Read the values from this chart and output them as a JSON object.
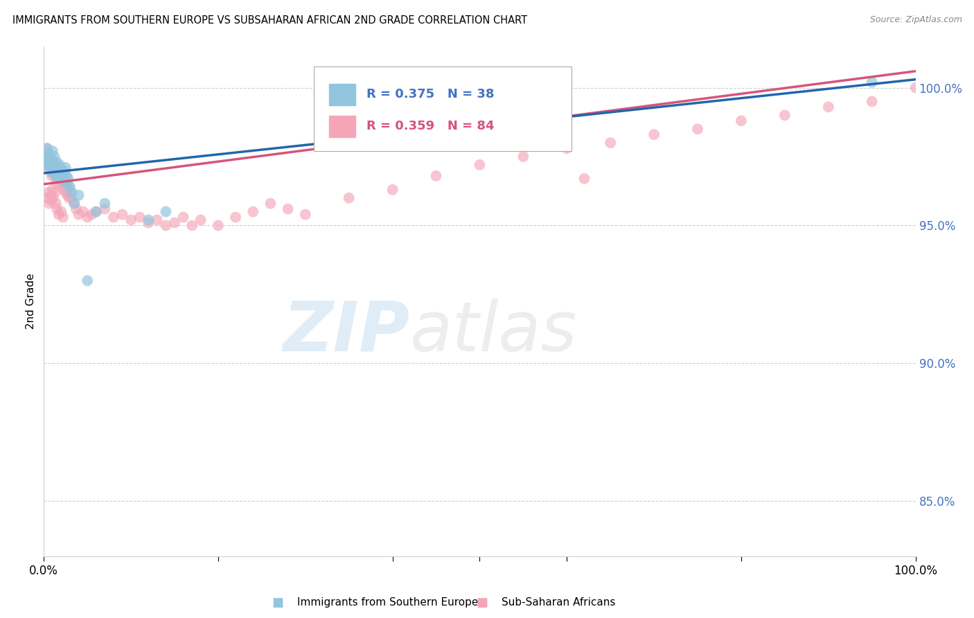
{
  "title": "IMMIGRANTS FROM SOUTHERN EUROPE VS SUBSAHARAN AFRICAN 2ND GRADE CORRELATION CHART",
  "source": "Source: ZipAtlas.com",
  "ylabel": "2nd Grade",
  "right_yticks": [
    100.0,
    95.0,
    90.0,
    85.0
  ],
  "xlim": [
    0.0,
    100.0
  ],
  "ylim": [
    83.0,
    101.5
  ],
  "legend1_label": "Immigrants from Southern Europe",
  "legend2_label": "Sub-Saharan Africans",
  "R1": 0.375,
  "N1": 38,
  "R2": 0.359,
  "N2": 84,
  "color_blue": "#92c5de",
  "color_pink": "#f4a6b8",
  "line_blue": "#2166ac",
  "line_pink": "#d6547a",
  "blue_line_x0": 0.0,
  "blue_line_y0": 96.9,
  "blue_line_x1": 100.0,
  "blue_line_y1": 100.3,
  "pink_line_x0": 0.0,
  "pink_line_y0": 96.5,
  "pink_line_x1": 100.0,
  "pink_line_y1": 100.6,
  "blue_scatter_x": [
    0.2,
    0.3,
    0.4,
    0.5,
    0.6,
    0.7,
    0.8,
    0.9,
    1.0,
    1.0,
    1.1,
    1.2,
    1.3,
    1.4,
    1.5,
    1.6,
    1.7,
    1.8,
    1.9,
    2.0,
    2.1,
    2.2,
    2.3,
    2.4,
    2.5,
    2.6,
    2.7,
    2.8,
    3.0,
    3.2,
    3.5,
    4.0,
    5.0,
    6.0,
    7.0,
    12.0,
    14.0,
    95.0
  ],
  "blue_scatter_y": [
    97.2,
    97.5,
    97.8,
    97.3,
    97.6,
    97.1,
    97.4,
    97.0,
    97.7,
    96.9,
    97.2,
    97.5,
    97.1,
    96.8,
    97.3,
    97.0,
    96.7,
    97.2,
    96.9,
    96.8,
    96.7,
    97.0,
    96.9,
    96.6,
    97.1,
    96.8,
    96.5,
    96.7,
    96.4,
    96.2,
    95.8,
    96.1,
    93.0,
    95.5,
    95.8,
    95.2,
    95.5,
    100.2
  ],
  "pink_scatter_x": [
    0.2,
    0.3,
    0.4,
    0.5,
    0.6,
    0.7,
    0.8,
    0.9,
    1.0,
    1.1,
    1.2,
    1.3,
    1.4,
    1.5,
    1.6,
    1.7,
    1.8,
    1.9,
    2.0,
    2.1,
    2.2,
    2.3,
    2.4,
    2.5,
    2.6,
    2.7,
    2.8,
    2.9,
    3.0,
    3.2,
    3.5,
    3.7,
    4.0,
    4.5,
    5.0,
    5.5,
    6.0,
    7.0,
    8.0,
    9.0,
    10.0,
    11.0,
    12.0,
    13.0,
    14.0,
    15.0,
    16.0,
    17.0,
    18.0,
    20.0,
    22.0,
    24.0,
    26.0,
    28.0,
    30.0,
    35.0,
    40.0,
    45.0,
    50.0,
    55.0,
    60.0,
    65.0,
    70.0,
    75.0,
    80.0,
    85.0,
    90.0,
    95.0,
    100.0,
    0.4,
    0.5,
    0.6,
    0.8,
    0.9,
    1.0,
    1.1,
    1.3,
    1.4,
    1.5,
    1.7,
    1.8,
    2.0,
    2.2,
    62.0
  ],
  "pink_scatter_y": [
    97.5,
    97.8,
    97.2,
    97.6,
    97.3,
    97.0,
    97.4,
    96.8,
    97.1,
    97.3,
    96.9,
    97.2,
    96.7,
    97.0,
    96.5,
    96.8,
    97.1,
    96.6,
    96.9,
    96.4,
    96.7,
    96.3,
    96.6,
    96.2,
    96.5,
    96.1,
    96.4,
    96.0,
    96.2,
    96.0,
    95.8,
    95.6,
    95.4,
    95.5,
    95.3,
    95.4,
    95.5,
    95.6,
    95.3,
    95.4,
    95.2,
    95.3,
    95.1,
    95.2,
    95.0,
    95.1,
    95.3,
    95.0,
    95.2,
    95.0,
    95.3,
    95.5,
    95.8,
    95.6,
    95.4,
    96.0,
    96.3,
    96.8,
    97.2,
    97.5,
    97.8,
    98.0,
    98.3,
    98.5,
    98.8,
    99.0,
    99.3,
    99.5,
    100.0,
    96.0,
    96.2,
    95.8,
    96.1,
    95.9,
    96.3,
    96.0,
    96.2,
    95.8,
    95.6,
    95.4,
    96.8,
    95.5,
    95.3,
    96.7
  ],
  "watermark_zip": "ZIP",
  "watermark_atlas": "atlas",
  "background_color": "#ffffff",
  "grid_color": "#d0d0d0"
}
